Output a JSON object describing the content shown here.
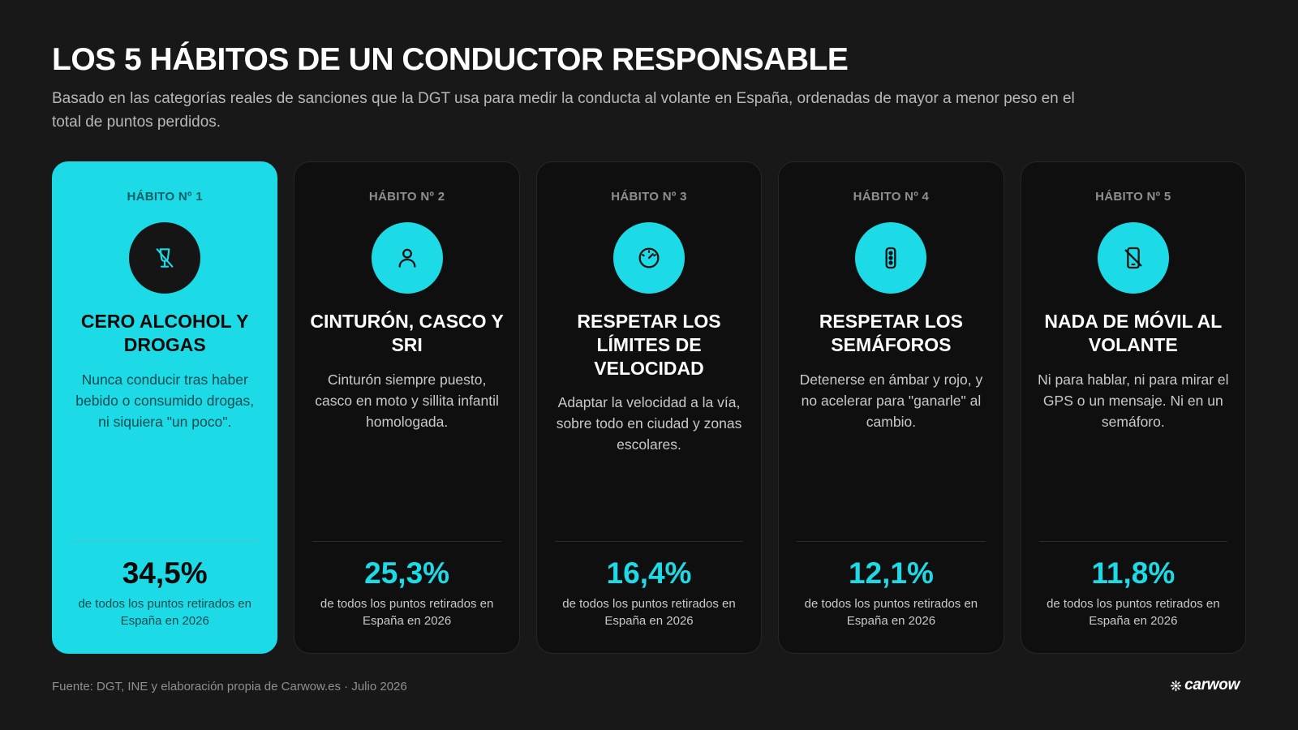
{
  "header": {
    "title": "LOS 5 HÁBITOS DE UN CONDUCTOR RESPONSABLE",
    "subtitle": "Basado en las categorías reales de sanciones que la DGT usa para medir la conducta al volante en España, ordenadas de mayor a menor peso en el total de puntos perdidos."
  },
  "colors": {
    "accent": "#1cdbe6",
    "background": "#181818",
    "card_background": "#0f0f0f"
  },
  "cards": [
    {
      "label": "HÁBITO Nº 1",
      "icon": "no-alcohol-glass-icon",
      "heading": "CERO ALCOHOL Y DROGAS",
      "description": "Nunca conducir tras haber bebido o consumido drogas, ni siquiera \"un poco\".",
      "stat": "34,5%",
      "stat_caption": "de todos los puntos retirados en España en 2026",
      "featured": true
    },
    {
      "label": "HÁBITO Nº 2",
      "icon": "person-icon",
      "heading": "CINTURÓN, CASCO Y SRI",
      "description": "Cinturón siempre puesto, casco en moto y sillita infantil homologada.",
      "stat": "25,3%",
      "stat_caption": "de todos los puntos retirados en España en 2026",
      "featured": false
    },
    {
      "label": "HÁBITO Nº 3",
      "icon": "speedometer-icon",
      "heading": "RESPETAR LOS LÍMITES DE VELOCIDAD",
      "description": "Adaptar la velocidad a la vía, sobre todo en ciudad y zonas escolares.",
      "stat": "16,4%",
      "stat_caption": "de todos los puntos retirados en España en 2026",
      "featured": false
    },
    {
      "label": "HÁBITO Nº 4",
      "icon": "traffic-light-icon",
      "heading": "RESPETAR LOS SEMÁFOROS",
      "description": "Detenerse en ámbar y rojo, y no acelerar para \"ganarle\" al cambio.",
      "stat": "12,1%",
      "stat_caption": "de todos los puntos retirados en España en 2026",
      "featured": false
    },
    {
      "label": "HÁBITO Nº 5",
      "icon": "no-phone-icon",
      "heading": "NADA DE MÓVIL AL VOLANTE",
      "description": "Ni para hablar, ni para mirar el GPS o un mensaje. Ni en un semáforo.",
      "stat": "11,8%",
      "stat_caption": "de todos los puntos retirados en España en 2026",
      "featured": false
    }
  ],
  "footer": {
    "source": "Fuente: DGT, INE y elaboración propia de Carwow.es · Julio 2026",
    "brand": "carwow",
    "brand_icon": "carwow-logo-icon"
  }
}
